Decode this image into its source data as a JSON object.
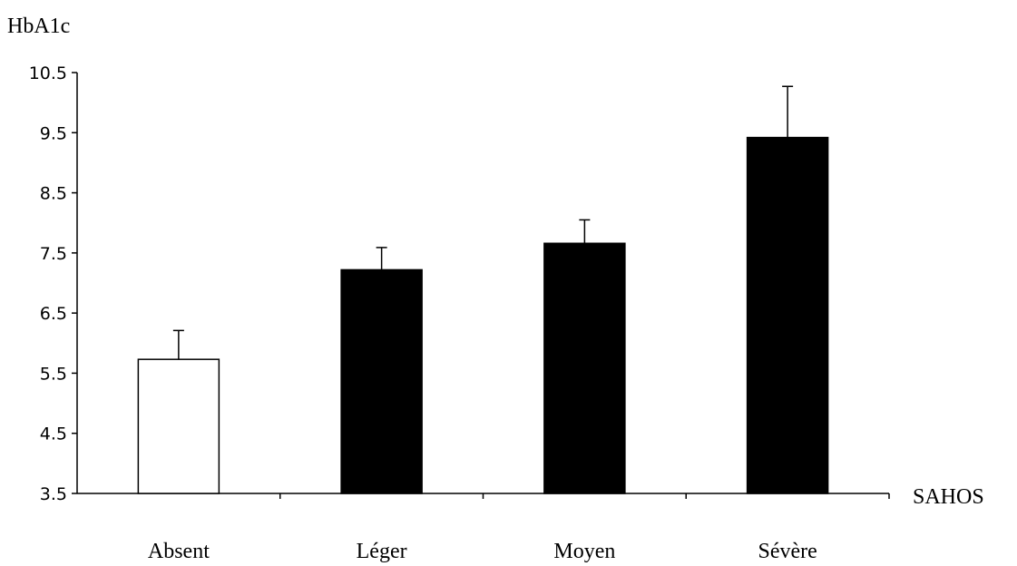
{
  "chart_data": {
    "type": "bar",
    "title": "",
    "ylabel": "HbA1c",
    "xlabel": "SAHOS",
    "ylim": [
      3.5,
      10.5
    ],
    "yticks": [
      3.5,
      4.5,
      5.5,
      6.5,
      7.5,
      8.5,
      9.5,
      10.5
    ],
    "ytick_labels": [
      "3.5",
      "4.5",
      "5.5",
      "6.5",
      "7.5",
      "8.5",
      "9.5",
      "10.5"
    ],
    "categories": [
      "Absent",
      "Léger",
      "Moyen",
      "Sévère"
    ],
    "values": [
      5.73,
      7.22,
      7.66,
      9.42
    ],
    "error_upper": [
      6.21,
      7.59,
      8.05,
      10.27
    ],
    "bar_fill": [
      "#ffffff",
      "#000000",
      "#000000",
      "#000000"
    ],
    "bar_stroke": "#000000",
    "grid": false,
    "legend": "none"
  }
}
